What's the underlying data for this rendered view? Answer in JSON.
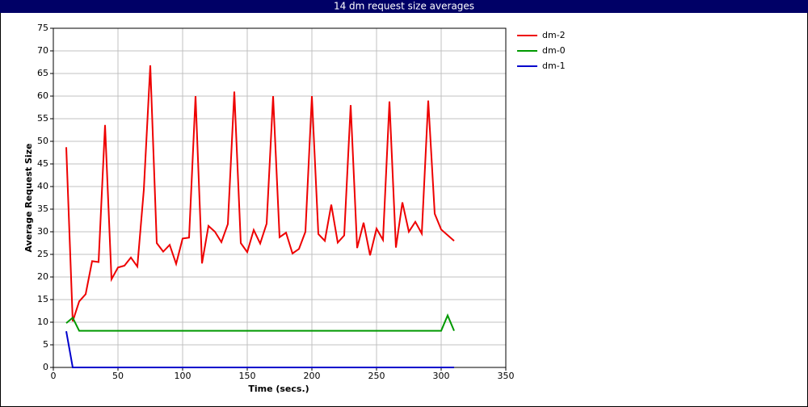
{
  "chart_data": {
    "type": "line",
    "title": "14 dm request size averages",
    "x_label": "Time (secs.)",
    "y_label": "Average Request Size",
    "xlim": [
      0,
      350
    ],
    "xticks": [
      0,
      50,
      100,
      150,
      200,
      250,
      300,
      350
    ],
    "ylim": [
      0,
      75
    ],
    "yticks": [
      0,
      5,
      10,
      15,
      20,
      25,
      30,
      35,
      40,
      45,
      50,
      55,
      60,
      65,
      70,
      75
    ],
    "grid": true,
    "legend": "right",
    "series": [
      {
        "name": "dm-2",
        "color": "#ee0000",
        "x": [
          10,
          15,
          20,
          25,
          30,
          35,
          40,
          45,
          50,
          55,
          60,
          65,
          70,
          75,
          80,
          85,
          90,
          95,
          100,
          105,
          110,
          115,
          120,
          125,
          130,
          135,
          140,
          145,
          150,
          155,
          160,
          165,
          170,
          175,
          180,
          185,
          190,
          195,
          200,
          205,
          210,
          215,
          220,
          225,
          230,
          235,
          240,
          245,
          250,
          255,
          260,
          265,
          270,
          275,
          280,
          285,
          290,
          295,
          300,
          310
        ],
        "values": [
          48.7,
          10.2,
          14.6,
          16.2,
          23.5,
          23.3,
          53.6,
          19.5,
          22.1,
          22.5,
          24.3,
          22.3,
          39.3,
          66.8,
          27.5,
          25.6,
          27.1,
          22.9,
          28.5,
          28.7,
          60,
          23,
          31.3,
          30,
          27.7,
          31.7,
          61,
          27.5,
          25.5,
          30.4,
          27.4,
          31.8,
          60,
          28.8,
          29.8,
          25.2,
          26.2,
          30,
          60,
          29.5,
          28,
          36,
          27.6,
          29.2,
          58,
          26.4,
          32,
          24.8,
          30.7,
          28.2,
          58.8,
          26.5,
          36.5,
          30,
          32.2,
          29.6,
          59,
          34,
          30.5,
          28
        ]
      },
      {
        "name": "dm-0",
        "color": "#009900",
        "x": [
          10,
          15,
          20,
          300,
          305,
          310
        ],
        "values": [
          9.8,
          11,
          8.1,
          8.1,
          11.5,
          8.1
        ]
      },
      {
        "name": "dm-1",
        "color": "#0000cc",
        "x": [
          10,
          15,
          310
        ],
        "values": [
          8,
          0,
          0
        ]
      }
    ]
  }
}
